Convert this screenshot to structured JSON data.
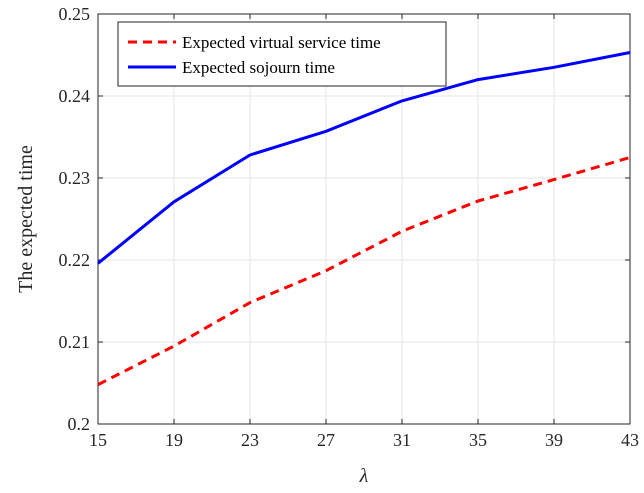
{
  "chart_data": {
    "type": "line",
    "title": "",
    "xlabel": "λ",
    "ylabel": "The expected time",
    "xlim": [
      15,
      43
    ],
    "ylim": [
      0.2,
      0.25
    ],
    "xticks": [
      15,
      19,
      23,
      27,
      31,
      35,
      39,
      43
    ],
    "yticks": [
      0.2,
      0.21,
      0.22,
      0.23,
      0.24,
      0.25
    ],
    "ytick_labels": [
      "0.2",
      "0.21",
      "0.22",
      "0.23",
      "0.24",
      "0.25"
    ],
    "grid": true,
    "legend_position": "top-left",
    "x": [
      15,
      19,
      23,
      27,
      31,
      35,
      39,
      43
    ],
    "series": [
      {
        "name": "Expected virtual service time",
        "values": [
          0.2048,
          0.2095,
          0.2148,
          0.2187,
          0.2235,
          0.2272,
          0.2298,
          0.2325
        ],
        "color": "#ff0000",
        "style": "dashed"
      },
      {
        "name": "Expected sojourn time",
        "values": [
          0.2196,
          0.2271,
          0.2328,
          0.2357,
          0.2394,
          0.242,
          0.2435,
          0.2453
        ],
        "color": "#0000ff",
        "style": "solid"
      }
    ]
  }
}
